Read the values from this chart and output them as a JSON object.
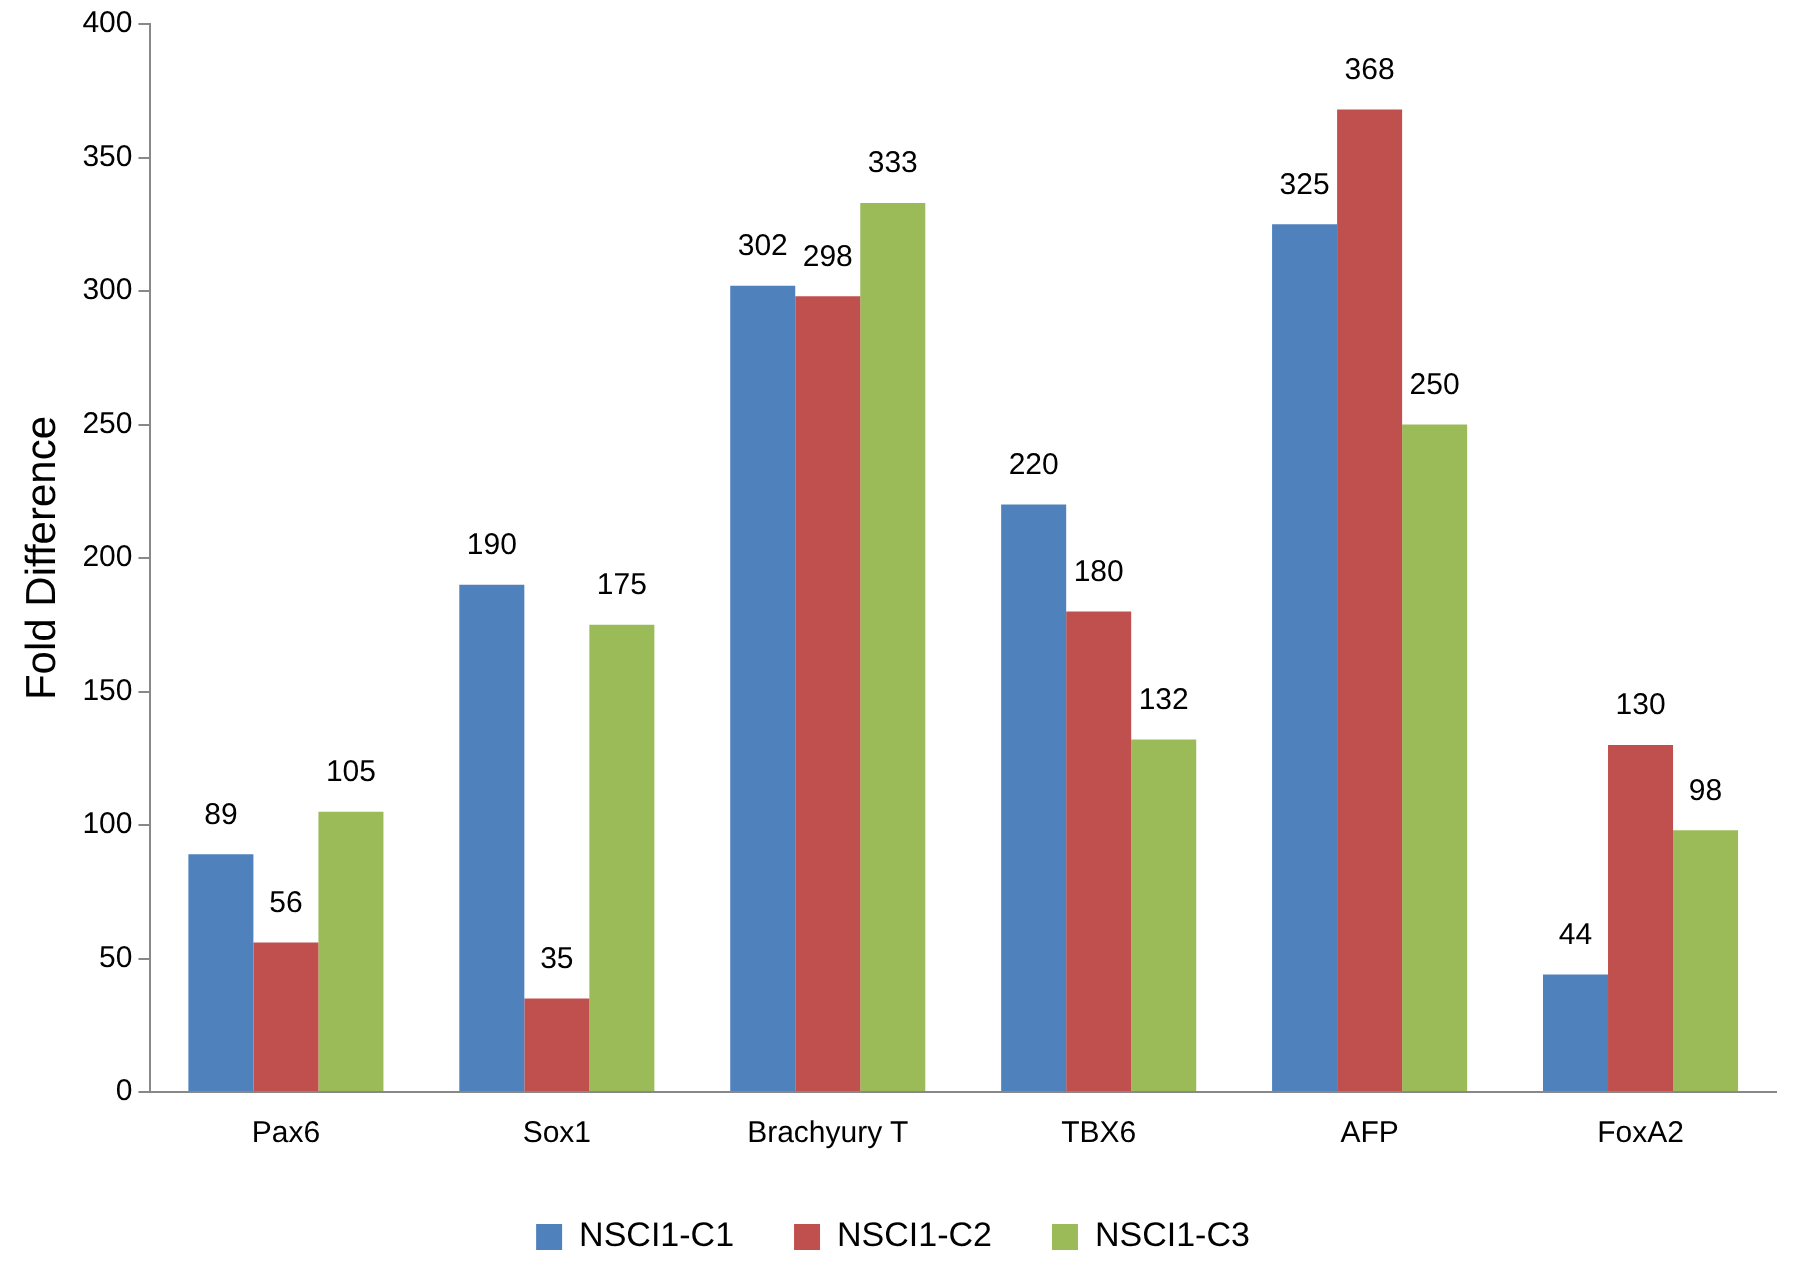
{
  "chart_data": {
    "type": "bar",
    "ylabel": "Fold Difference",
    "categories": [
      "Pax6",
      "Sox1",
      "Brachyury T",
      "TBX6",
      "AFP",
      "FoxA2"
    ],
    "series": [
      {
        "name": "NSCI1-C1",
        "color": "#4f81bd",
        "values": [
          89,
          190,
          302,
          220,
          325,
          44
        ]
      },
      {
        "name": "NSCI1-C2",
        "color": "#c0504d",
        "values": [
          56,
          35,
          298,
          180,
          368,
          130
        ]
      },
      {
        "name": "NSCI1-C3",
        "color": "#9bbb59",
        "values": [
          105,
          175,
          333,
          132,
          250,
          98
        ]
      }
    ],
    "ylim": [
      0,
      400
    ],
    "yticks": [
      0,
      50,
      100,
      150,
      200,
      250,
      300,
      350,
      400
    ],
    "grid": false,
    "legend": "bottom",
    "data_labels": true
  }
}
